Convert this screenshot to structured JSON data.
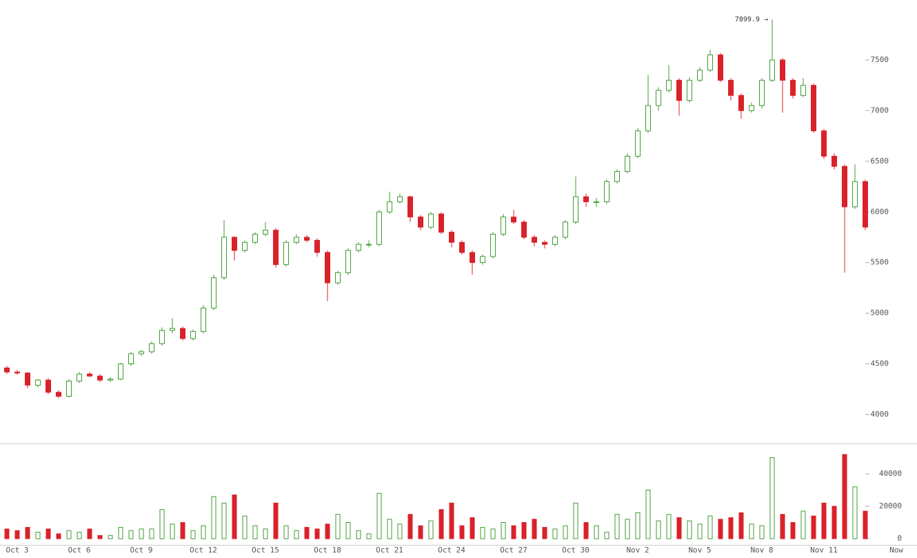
{
  "chart_data": [
    {
      "type": "candlestick",
      "categories": [
        null,
        "Oct 3",
        null,
        null,
        null,
        null,
        null,
        "Oct 6",
        null,
        null,
        null,
        null,
        null,
        "Oct 9",
        null,
        null,
        null,
        null,
        null,
        "Oct 12",
        null,
        null,
        null,
        null,
        null,
        "Oct 15",
        null,
        null,
        null,
        null,
        null,
        "Oct 18",
        null,
        null,
        null,
        null,
        null,
        "Oct 21",
        null,
        null,
        null,
        null,
        null,
        "Oct 24",
        null,
        null,
        null,
        null,
        null,
        "Oct 27",
        null,
        null,
        null,
        null,
        null,
        "Oct 30",
        null,
        null,
        null,
        null,
        null,
        "Nov 2",
        null,
        null,
        null,
        null,
        null,
        "Nov 5",
        null,
        null,
        null,
        null,
        null,
        "Nov 8",
        null,
        null,
        null,
        null,
        null,
        "Nov 11",
        null,
        null,
        null,
        null,
        null,
        null,
        "Now"
      ],
      "open": [
        4460,
        4420,
        4410,
        4290,
        4340,
        4220,
        4180,
        4330,
        4400,
        4380,
        4340,
        4350,
        4500,
        4600,
        4620,
        4700,
        4830,
        4850,
        4750,
        4820,
        5050,
        5350,
        5750,
        5620,
        5700,
        5780,
        5820,
        5480,
        5700,
        5750,
        5720,
        5600,
        5300,
        5400,
        5620,
        5680,
        5680,
        6000,
        6100,
        6150,
        5950,
        5850,
        5980,
        5800,
        5700,
        5600,
        5500,
        5560,
        5780,
        5950,
        5900,
        5750,
        5700,
        5680,
        5750,
        5900,
        6150,
        6100,
        6100,
        6300,
        6400,
        6550,
        6800,
        7050,
        7200,
        7300,
        7100,
        7300,
        7400,
        7550,
        7300,
        7150,
        7000,
        7050,
        7300,
        7500,
        7300,
        7150,
        7250,
        6800,
        6550,
        6450,
        6050,
        6300,
        null,
        null,
        null
      ],
      "high": [
        4480,
        4440,
        4420,
        4350,
        4360,
        4240,
        4350,
        4420,
        4420,
        4400,
        4370,
        4510,
        4620,
        4640,
        4720,
        4860,
        4950,
        4870,
        4840,
        5080,
        5380,
        5920,
        5760,
        5720,
        5800,
        5900,
        5840,
        5720,
        5780,
        5770,
        5740,
        5620,
        5420,
        5640,
        5700,
        5720,
        6020,
        6200,
        6180,
        6160,
        5970,
        6000,
        6000,
        5820,
        5720,
        5620,
        5580,
        5800,
        5980,
        6020,
        5920,
        5770,
        5720,
        5770,
        5920,
        6350,
        6180,
        6140,
        6320,
        6420,
        6580,
        6830,
        7350,
        7230,
        7450,
        7320,
        7330,
        7430,
        7600,
        7570,
        7320,
        7170,
        7080,
        7320,
        7899.9,
        7520,
        7320,
        7320,
        7270,
        6820,
        6580,
        6470,
        6470,
        6320,
        null,
        null,
        null
      ],
      "low": [
        4400,
        4390,
        4260,
        4270,
        4200,
        4160,
        4170,
        4310,
        4370,
        4320,
        4320,
        4340,
        4480,
        4580,
        4600,
        4680,
        4800,
        4730,
        4730,
        4800,
        5030,
        5330,
        5520,
        5600,
        5680,
        5760,
        5450,
        5460,
        5680,
        5700,
        5560,
        5120,
        5280,
        5380,
        5600,
        5650,
        5660,
        5980,
        6080,
        5900,
        5820,
        5830,
        5780,
        5650,
        5580,
        5380,
        5480,
        5540,
        5760,
        5880,
        5730,
        5660,
        5640,
        5660,
        5730,
        5880,
        6050,
        6050,
        6080,
        6280,
        6380,
        6530,
        6780,
        7000,
        7180,
        6950,
        7080,
        7280,
        7380,
        7280,
        7100,
        6920,
        6980,
        7020,
        7280,
        6980,
        7120,
        7130,
        6780,
        6520,
        6420,
        5400,
        6030,
        5820,
        null,
        null,
        null
      ],
      "close": [
        4420,
        4410,
        4290,
        4340,
        4220,
        4180,
        4330,
        4400,
        4380,
        4340,
        4350,
        4500,
        4600,
        4620,
        4700,
        4830,
        4850,
        4750,
        4820,
        5050,
        5350,
        5750,
        5620,
        5700,
        5780,
        5820,
        5480,
        5700,
        5750,
        5720,
        5600,
        5300,
        5400,
        5620,
        5680,
        5680,
        6000,
        6100,
        6150,
        5950,
        5850,
        5980,
        5800,
        5700,
        5600,
        5500,
        5560,
        5780,
        5950,
        5900,
        5750,
        5700,
        5680,
        5750,
        5900,
        6150,
        6100,
        6100,
        6300,
        6400,
        6550,
        6800,
        7050,
        7200,
        7300,
        7100,
        7300,
        7400,
        7550,
        7300,
        7150,
        7000,
        7050,
        7300,
        7500,
        7300,
        7150,
        7250,
        6800,
        6550,
        6450,
        6050,
        6300,
        5850,
        null,
        null,
        null
      ],
      "up_color": "#3c9a2e",
      "down_color": "#d9222a",
      "annotation": "7899.9 →",
      "ylim": [
        3714,
        8092
      ],
      "yticks": [
        4000,
        4500,
        5000,
        5500,
        6000,
        6500,
        7000,
        7500
      ]
    },
    {
      "type": "bar",
      "values": [
        6000,
        5000,
        7000,
        4000,
        6000,
        3000,
        5000,
        4000,
        6000,
        2000,
        2000,
        7000,
        5000,
        6000,
        6000,
        18000,
        9000,
        10000,
        5000,
        8000,
        26000,
        22000,
        27000,
        14000,
        8000,
        6000,
        22000,
        8000,
        5000,
        7000,
        6000,
        9000,
        15000,
        10000,
        5000,
        3000,
        28000,
        12000,
        9000,
        15000,
        8000,
        11000,
        18000,
        22000,
        8000,
        13000,
        7000,
        6000,
        10000,
        8000,
        10000,
        12000,
        7000,
        6000,
        8000,
        22000,
        10000,
        8000,
        4000,
        15000,
        12000,
        16000,
        30000,
        11000,
        15000,
        13000,
        11000,
        9000,
        14000,
        12000,
        13000,
        16000,
        9000,
        8000,
        50000,
        15000,
        10000,
        17000,
        14000,
        22000,
        20000,
        52000,
        32000,
        17000,
        null,
        null,
        null
      ],
      "ylim": [
        -3830,
        57900
      ],
      "yticks": [
        0,
        20000,
        40000
      ]
    }
  ]
}
